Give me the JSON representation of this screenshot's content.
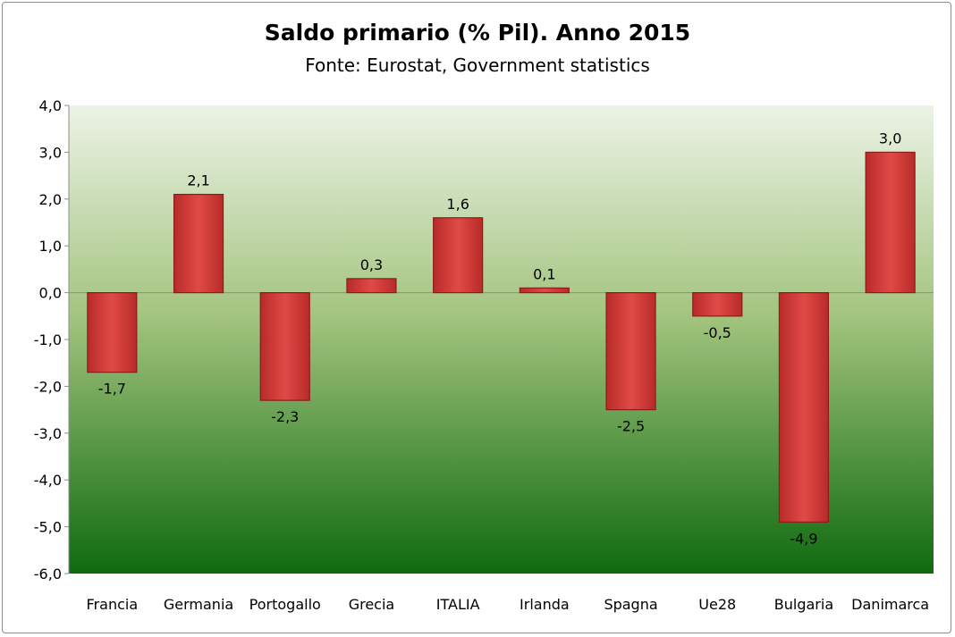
{
  "chart_data": {
    "type": "bar",
    "title": "Saldo primario (% Pil). Anno 2015",
    "subtitle": "Fonte: Eurostat, Government statistics",
    "xlabel": "",
    "ylabel": "",
    "categories": [
      "Francia",
      "Germania",
      "Portogallo",
      "Grecia",
      "ITALIA",
      "Irlanda",
      "Spagna",
      "Ue28",
      "Bulgaria",
      "Danimarca"
    ],
    "values": [
      -1.7,
      2.1,
      -2.3,
      0.3,
      1.6,
      0.1,
      -2.5,
      -0.5,
      -4.9,
      3.0
    ],
    "data_labels": [
      "-1,7",
      "2,1",
      "-2,3",
      "0,3",
      "1,6",
      "0,1",
      "-2,5",
      "-0,5",
      "-4,9",
      "3,0"
    ],
    "ylim": [
      -6,
      4
    ],
    "yticks": [
      4,
      3,
      2,
      1,
      0,
      -1,
      -2,
      -3,
      -4,
      -5,
      -6
    ],
    "ytick_labels": [
      "4,0",
      "3,0",
      "2,0",
      "1,0",
      "0,0",
      "-1,0",
      "-2,0",
      "-3,0",
      "-4,0",
      "-5,0",
      "-6,0"
    ],
    "grid": false,
    "legend": "none",
    "colors": {
      "bar": "#d9413e",
      "bar_dark": "#8e1b1a",
      "background_top": "#ecf3e6",
      "background_bottom": "#0f6a10",
      "axis": "#8c8c8c"
    }
  }
}
